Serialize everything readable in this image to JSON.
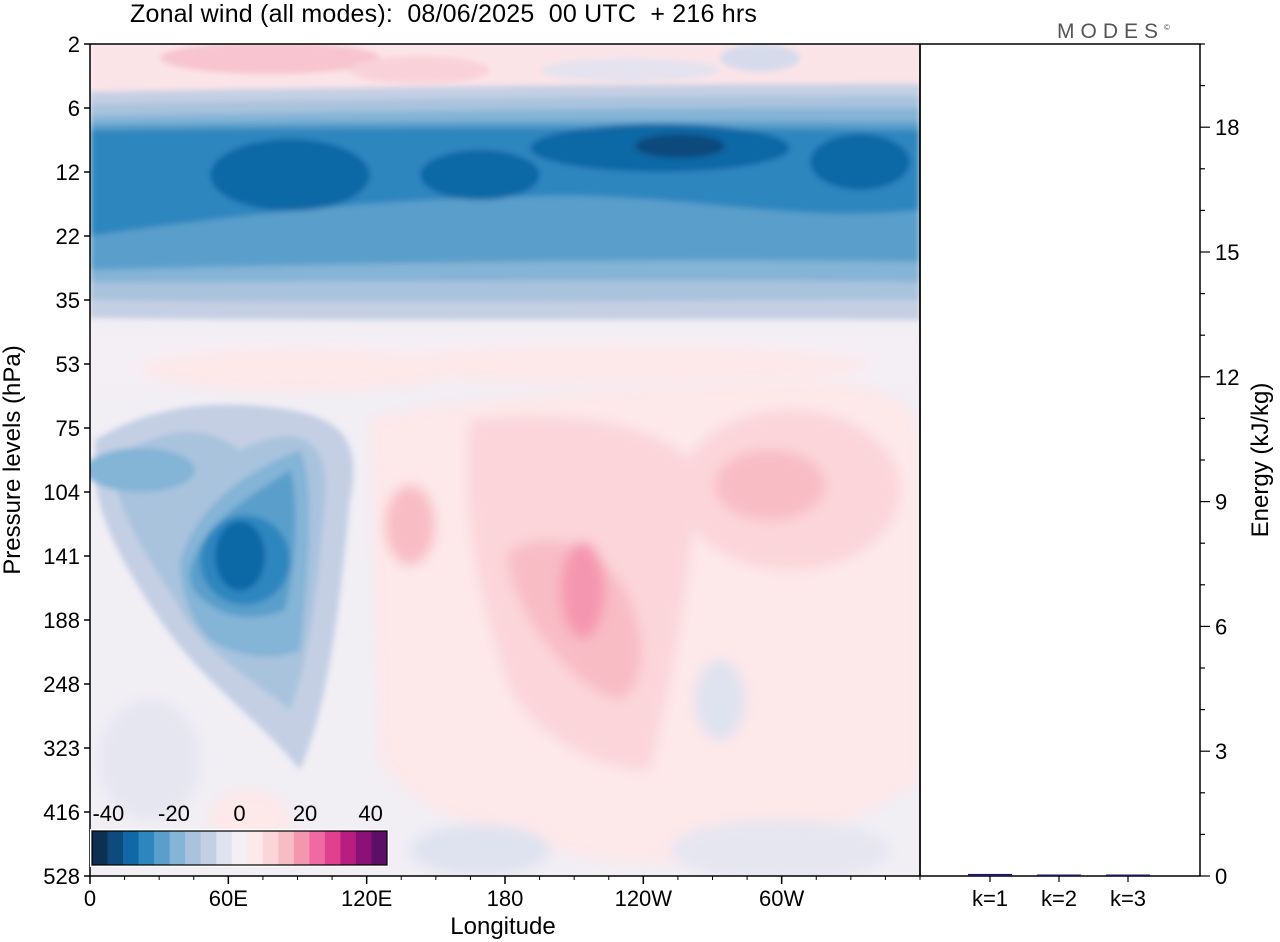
{
  "title": "Zonal wind (all modes):  08/06/2025  00 UTC  + 216 hrs",
  "logo": "MODES",
  "logo_mark": "©",
  "chart_data": [
    {
      "type": "heatmap",
      "xlabel": "Longitude",
      "ylabel": "Pressure levels (hPa)",
      "x_ticks": [
        "0",
        "60E",
        "120E",
        "180",
        "120W",
        "60W"
      ],
      "y_ticks": [
        "2",
        "6",
        "12",
        "22",
        "35",
        "53",
        "75",
        "104",
        "141",
        "188",
        "248",
        "323",
        "416",
        "528"
      ],
      "colorbar": {
        "tick_labels": [
          "-40",
          "-20",
          "0",
          "20",
          "40"
        ],
        "range": [
          -45,
          45
        ],
        "colors": [
          "#0d2f52",
          "#0e4a7c",
          "#1168a6",
          "#2f86bf",
          "#5a9fcb",
          "#84b4d6",
          "#a9c3dd",
          "#c4cfe4",
          "#dfe2ef",
          "#f4eff5",
          "#fde8ea",
          "#fbd5d9",
          "#f8bcc5",
          "#f596b0",
          "#ef6aa0",
          "#e0408e",
          "#b81d80",
          "#8a1178",
          "#5b1066"
        ]
      },
      "features": [
        {
          "name": "stratospheric easterly jet",
          "lon": [
            0,
            360
          ],
          "hPa": [
            7,
            30
          ],
          "peak_value": -40
        },
        {
          "name": "upper easterly core near 60E-110E",
          "lon": [
            45,
            100
          ],
          "hPa": [
            90,
            250
          ],
          "peak_value": -30
        },
        {
          "name": "westerly maximum near 160W",
          "lon": [
            160,
            220
          ],
          "hPa": [
            100,
            300
          ],
          "peak_value": 20
        },
        {
          "name": "westerly maximum near 70W",
          "lon": [
            270,
            320
          ],
          "hPa": [
            80,
            160
          ],
          "peak_value": 10
        }
      ]
    },
    {
      "type": "bar",
      "categories": [
        "k=1",
        "k=2",
        "k=3"
      ],
      "values": [
        0.05,
        0.03,
        0.02
      ],
      "ylabel": "Energy (kJ/kg)",
      "y_ticks": [
        "0",
        "3",
        "6",
        "9",
        "12",
        "15",
        "18"
      ],
      "ylim": [
        0,
        20
      ],
      "color": "#1a1a5e"
    }
  ]
}
